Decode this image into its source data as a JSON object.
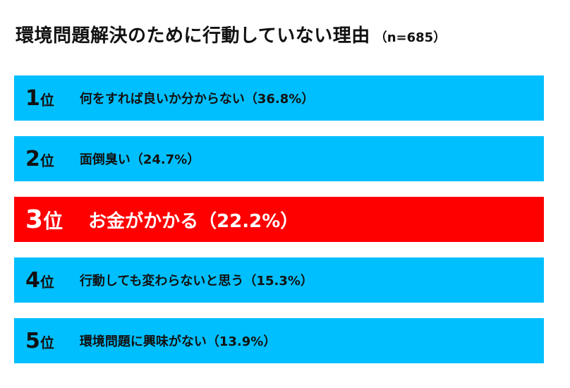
{
  "header": {
    "title": "環境問題解決のために行動していない理由",
    "sample": "（n=685）"
  },
  "colors": {
    "normal_bar": "#00bfff",
    "highlight_bar": "#ff0000"
  },
  "chart_data": {
    "type": "bar",
    "orientation": "horizontal",
    "rank_unit": "位",
    "categories": [
      "何をすれば良いか分からない",
      "面倒臭い",
      "お金がかかる",
      "行動しても変わらないと思う",
      "環境問題に興味がない"
    ],
    "values": [
      36.8,
      24.7,
      22.2,
      15.3,
      13.9
    ],
    "items": [
      {
        "rank": "1",
        "label": "何をすれば良いか分からない（36.8%）",
        "highlight": false
      },
      {
        "rank": "2",
        "label": "面倒臭い（24.7%）",
        "highlight": false
      },
      {
        "rank": "3",
        "label": "お金がかかる（22.2%）",
        "highlight": true
      },
      {
        "rank": "4",
        "label": "行動しても変わらないと思う（15.3%）",
        "highlight": false
      },
      {
        "rank": "5",
        "label": "環境問題に興味がない（13.9%）",
        "highlight": false
      }
    ]
  }
}
